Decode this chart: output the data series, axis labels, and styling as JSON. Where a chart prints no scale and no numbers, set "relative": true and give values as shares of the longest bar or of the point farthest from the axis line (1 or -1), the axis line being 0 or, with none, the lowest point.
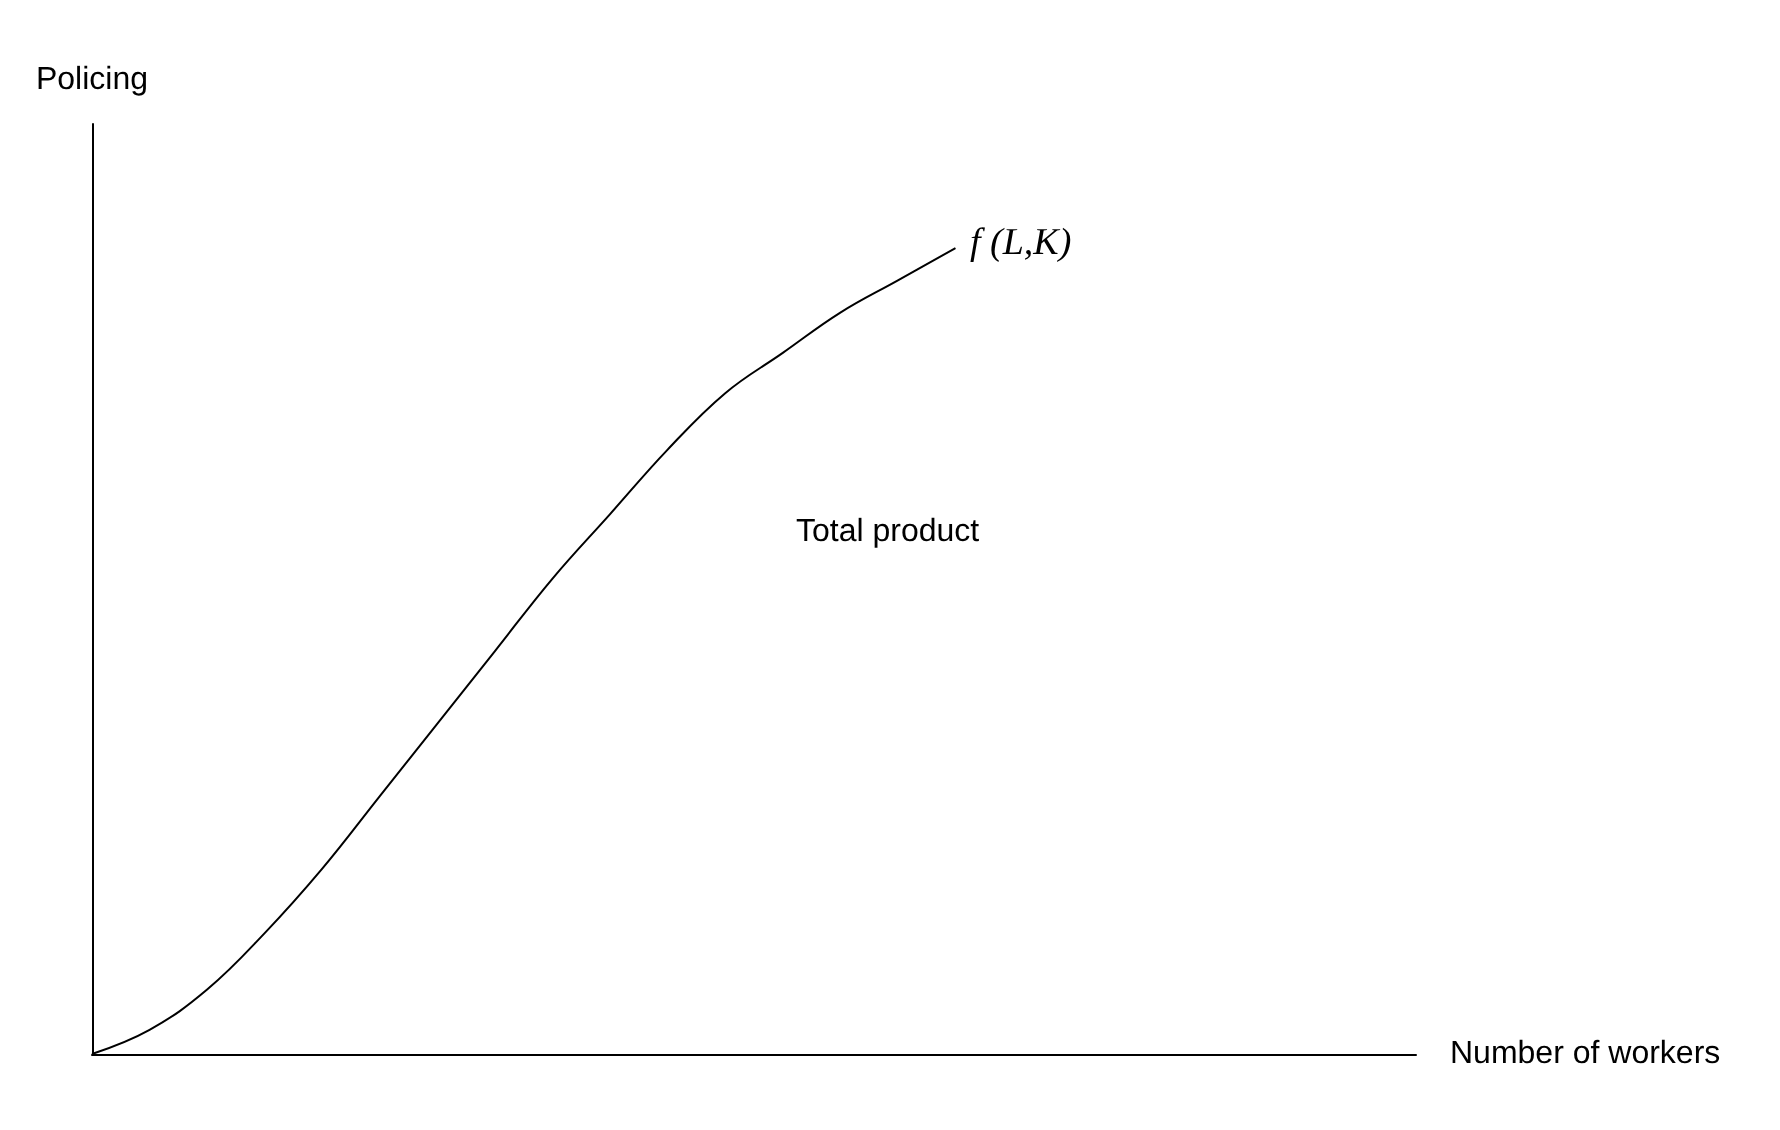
{
  "chart_data": {
    "type": "line",
    "relative": true,
    "ylabel": "Policing",
    "xlabel": "Number of workers",
    "annotations": [
      "f (L,K)",
      "Total product"
    ],
    "categories": [
      null,
      null,
      null,
      null,
      null,
      null,
      null,
      null,
      null,
      null,
      null,
      null,
      null,
      null,
      null,
      null,
      null,
      null,
      null,
      null,
      null,
      null,
      null,
      null
    ],
    "series": [
      {
        "color": "#000000",
        "values": [
          0,
          0.03,
          0.08,
          0.15,
          0.23,
          0.32,
          0.41,
          0.5,
          0.59,
          0.67,
          0.75,
          0.82,
          0.87,
          0.92,
          0.96,
          1,
          null,
          null,
          null,
          null,
          null,
          null,
          null,
          null
        ]
      }
    ],
    "marker": "none",
    "grid": false
  }
}
